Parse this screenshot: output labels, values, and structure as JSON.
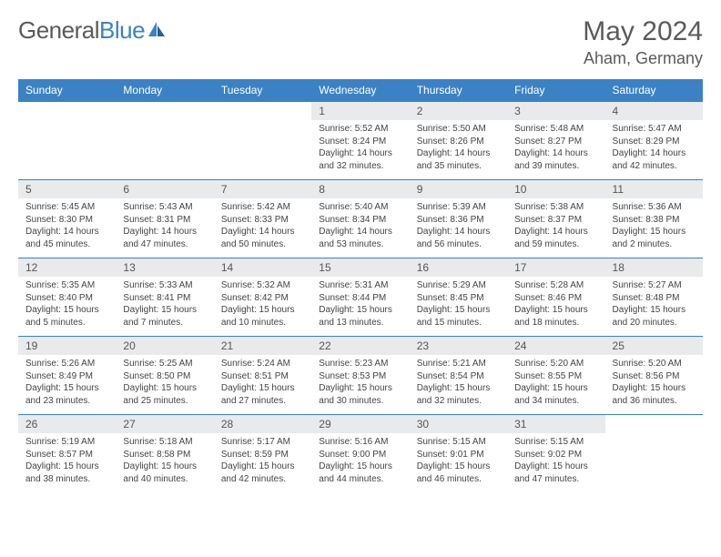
{
  "logo": {
    "part1": "General",
    "part2": "Blue"
  },
  "title": "May 2024",
  "location": "Aham, Germany",
  "colors": {
    "header_bg": "#3b82c4",
    "header_text": "#ffffff",
    "daynum_bg": "#e8eaec",
    "border": "#3b82c4",
    "text": "#444444",
    "title_text": "#5a5a5a"
  },
  "weekdays": [
    "Sunday",
    "Monday",
    "Tuesday",
    "Wednesday",
    "Thursday",
    "Friday",
    "Saturday"
  ],
  "weeks": [
    [
      {
        "empty": true
      },
      {
        "empty": true
      },
      {
        "empty": true
      },
      {
        "n": "1",
        "sr": "Sunrise: 5:52 AM",
        "ss": "Sunset: 8:24 PM",
        "dl": "Daylight: 14 hours and 32 minutes."
      },
      {
        "n": "2",
        "sr": "Sunrise: 5:50 AM",
        "ss": "Sunset: 8:26 PM",
        "dl": "Daylight: 14 hours and 35 minutes."
      },
      {
        "n": "3",
        "sr": "Sunrise: 5:48 AM",
        "ss": "Sunset: 8:27 PM",
        "dl": "Daylight: 14 hours and 39 minutes."
      },
      {
        "n": "4",
        "sr": "Sunrise: 5:47 AM",
        "ss": "Sunset: 8:29 PM",
        "dl": "Daylight: 14 hours and 42 minutes."
      }
    ],
    [
      {
        "n": "5",
        "sr": "Sunrise: 5:45 AM",
        "ss": "Sunset: 8:30 PM",
        "dl": "Daylight: 14 hours and 45 minutes."
      },
      {
        "n": "6",
        "sr": "Sunrise: 5:43 AM",
        "ss": "Sunset: 8:31 PM",
        "dl": "Daylight: 14 hours and 47 minutes."
      },
      {
        "n": "7",
        "sr": "Sunrise: 5:42 AM",
        "ss": "Sunset: 8:33 PM",
        "dl": "Daylight: 14 hours and 50 minutes."
      },
      {
        "n": "8",
        "sr": "Sunrise: 5:40 AM",
        "ss": "Sunset: 8:34 PM",
        "dl": "Daylight: 14 hours and 53 minutes."
      },
      {
        "n": "9",
        "sr": "Sunrise: 5:39 AM",
        "ss": "Sunset: 8:36 PM",
        "dl": "Daylight: 14 hours and 56 minutes."
      },
      {
        "n": "10",
        "sr": "Sunrise: 5:38 AM",
        "ss": "Sunset: 8:37 PM",
        "dl": "Daylight: 14 hours and 59 minutes."
      },
      {
        "n": "11",
        "sr": "Sunrise: 5:36 AM",
        "ss": "Sunset: 8:38 PM",
        "dl": "Daylight: 15 hours and 2 minutes."
      }
    ],
    [
      {
        "n": "12",
        "sr": "Sunrise: 5:35 AM",
        "ss": "Sunset: 8:40 PM",
        "dl": "Daylight: 15 hours and 5 minutes."
      },
      {
        "n": "13",
        "sr": "Sunrise: 5:33 AM",
        "ss": "Sunset: 8:41 PM",
        "dl": "Daylight: 15 hours and 7 minutes."
      },
      {
        "n": "14",
        "sr": "Sunrise: 5:32 AM",
        "ss": "Sunset: 8:42 PM",
        "dl": "Daylight: 15 hours and 10 minutes."
      },
      {
        "n": "15",
        "sr": "Sunrise: 5:31 AM",
        "ss": "Sunset: 8:44 PM",
        "dl": "Daylight: 15 hours and 13 minutes."
      },
      {
        "n": "16",
        "sr": "Sunrise: 5:29 AM",
        "ss": "Sunset: 8:45 PM",
        "dl": "Daylight: 15 hours and 15 minutes."
      },
      {
        "n": "17",
        "sr": "Sunrise: 5:28 AM",
        "ss": "Sunset: 8:46 PM",
        "dl": "Daylight: 15 hours and 18 minutes."
      },
      {
        "n": "18",
        "sr": "Sunrise: 5:27 AM",
        "ss": "Sunset: 8:48 PM",
        "dl": "Daylight: 15 hours and 20 minutes."
      }
    ],
    [
      {
        "n": "19",
        "sr": "Sunrise: 5:26 AM",
        "ss": "Sunset: 8:49 PM",
        "dl": "Daylight: 15 hours and 23 minutes."
      },
      {
        "n": "20",
        "sr": "Sunrise: 5:25 AM",
        "ss": "Sunset: 8:50 PM",
        "dl": "Daylight: 15 hours and 25 minutes."
      },
      {
        "n": "21",
        "sr": "Sunrise: 5:24 AM",
        "ss": "Sunset: 8:51 PM",
        "dl": "Daylight: 15 hours and 27 minutes."
      },
      {
        "n": "22",
        "sr": "Sunrise: 5:23 AM",
        "ss": "Sunset: 8:53 PM",
        "dl": "Daylight: 15 hours and 30 minutes."
      },
      {
        "n": "23",
        "sr": "Sunrise: 5:21 AM",
        "ss": "Sunset: 8:54 PM",
        "dl": "Daylight: 15 hours and 32 minutes."
      },
      {
        "n": "24",
        "sr": "Sunrise: 5:20 AM",
        "ss": "Sunset: 8:55 PM",
        "dl": "Daylight: 15 hours and 34 minutes."
      },
      {
        "n": "25",
        "sr": "Sunrise: 5:20 AM",
        "ss": "Sunset: 8:56 PM",
        "dl": "Daylight: 15 hours and 36 minutes."
      }
    ],
    [
      {
        "n": "26",
        "sr": "Sunrise: 5:19 AM",
        "ss": "Sunset: 8:57 PM",
        "dl": "Daylight: 15 hours and 38 minutes."
      },
      {
        "n": "27",
        "sr": "Sunrise: 5:18 AM",
        "ss": "Sunset: 8:58 PM",
        "dl": "Daylight: 15 hours and 40 minutes."
      },
      {
        "n": "28",
        "sr": "Sunrise: 5:17 AM",
        "ss": "Sunset: 8:59 PM",
        "dl": "Daylight: 15 hours and 42 minutes."
      },
      {
        "n": "29",
        "sr": "Sunrise: 5:16 AM",
        "ss": "Sunset: 9:00 PM",
        "dl": "Daylight: 15 hours and 44 minutes."
      },
      {
        "n": "30",
        "sr": "Sunrise: 5:15 AM",
        "ss": "Sunset: 9:01 PM",
        "dl": "Daylight: 15 hours and 46 minutes."
      },
      {
        "n": "31",
        "sr": "Sunrise: 5:15 AM",
        "ss": "Sunset: 9:02 PM",
        "dl": "Daylight: 15 hours and 47 minutes."
      },
      {
        "empty": true
      }
    ]
  ]
}
